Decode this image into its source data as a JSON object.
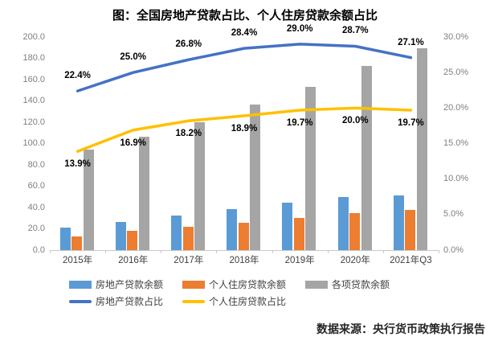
{
  "title": "图：全国房地产贷款占比、个人住房贷款余额占比",
  "source": "数据来源：央行货币政策执行报告",
  "chart_data": {
    "type": "combo-bar-line",
    "title": "图：全国房地产贷款占比、个人住房贷款余额占比",
    "categories": [
      "2015年",
      "2016年",
      "2017年",
      "2018年",
      "2019年",
      "2020年",
      "2021年Q3"
    ],
    "bar_series": [
      {
        "key": "real-estate-loan-balance",
        "name": "房地产贷款余额",
        "color": "#5B9BD5",
        "values": [
          21.0,
          26.7,
          32.2,
          38.7,
          44.4,
          49.6,
          51.4
        ]
      },
      {
        "key": "personal-housing-loan-balance",
        "name": "个人住房贷款余额",
        "color": "#ED7D31",
        "values": [
          13.1,
          18.0,
          21.9,
          25.8,
          30.2,
          34.4,
          37.4
        ]
      },
      {
        "key": "total-loan-balance",
        "name": "各项贷款余额",
        "color": "#A5A5A5",
        "values": [
          94.0,
          106.6,
          120.1,
          136.3,
          153.1,
          172.7,
          189.5
        ]
      }
    ],
    "line_series": [
      {
        "key": "real-estate-loan-ratio",
        "name": "房地产贷款占比",
        "color": "#4472C4",
        "values": [
          22.4,
          25.0,
          26.8,
          28.4,
          29.0,
          28.7,
          27.1
        ],
        "labels": [
          "22.4%",
          "25.0%",
          "26.8%",
          "28.4%",
          "29.0%",
          "28.7%",
          "27.1%"
        ],
        "label_position": "above"
      },
      {
        "key": "personal-housing-loan-ratio",
        "name": "个人住房贷款占比",
        "color": "#FFC000",
        "values": [
          13.9,
          16.9,
          18.2,
          18.9,
          19.7,
          20.0,
          19.7
        ],
        "labels": [
          "13.9%",
          "16.9%",
          "18.2%",
          "18.9%",
          "19.7%",
          "20.0%",
          "19.7%"
        ],
        "label_position": "below"
      }
    ],
    "axes": {
      "left": {
        "min": 0,
        "max": 200,
        "ticks": [
          "0.0",
          "20.0",
          "40.0",
          "60.0",
          "80.0",
          "100.0",
          "120.0",
          "140.0",
          "160.0",
          "180.0",
          "200.0"
        ]
      },
      "right": {
        "min": 0,
        "max": 30,
        "ticks": [
          "0.0%",
          "5.0%",
          "10.0%",
          "15.0%",
          "20.0%",
          "25.0%",
          "30.0%"
        ]
      }
    },
    "legend_position": "bottom",
    "grid": false
  }
}
